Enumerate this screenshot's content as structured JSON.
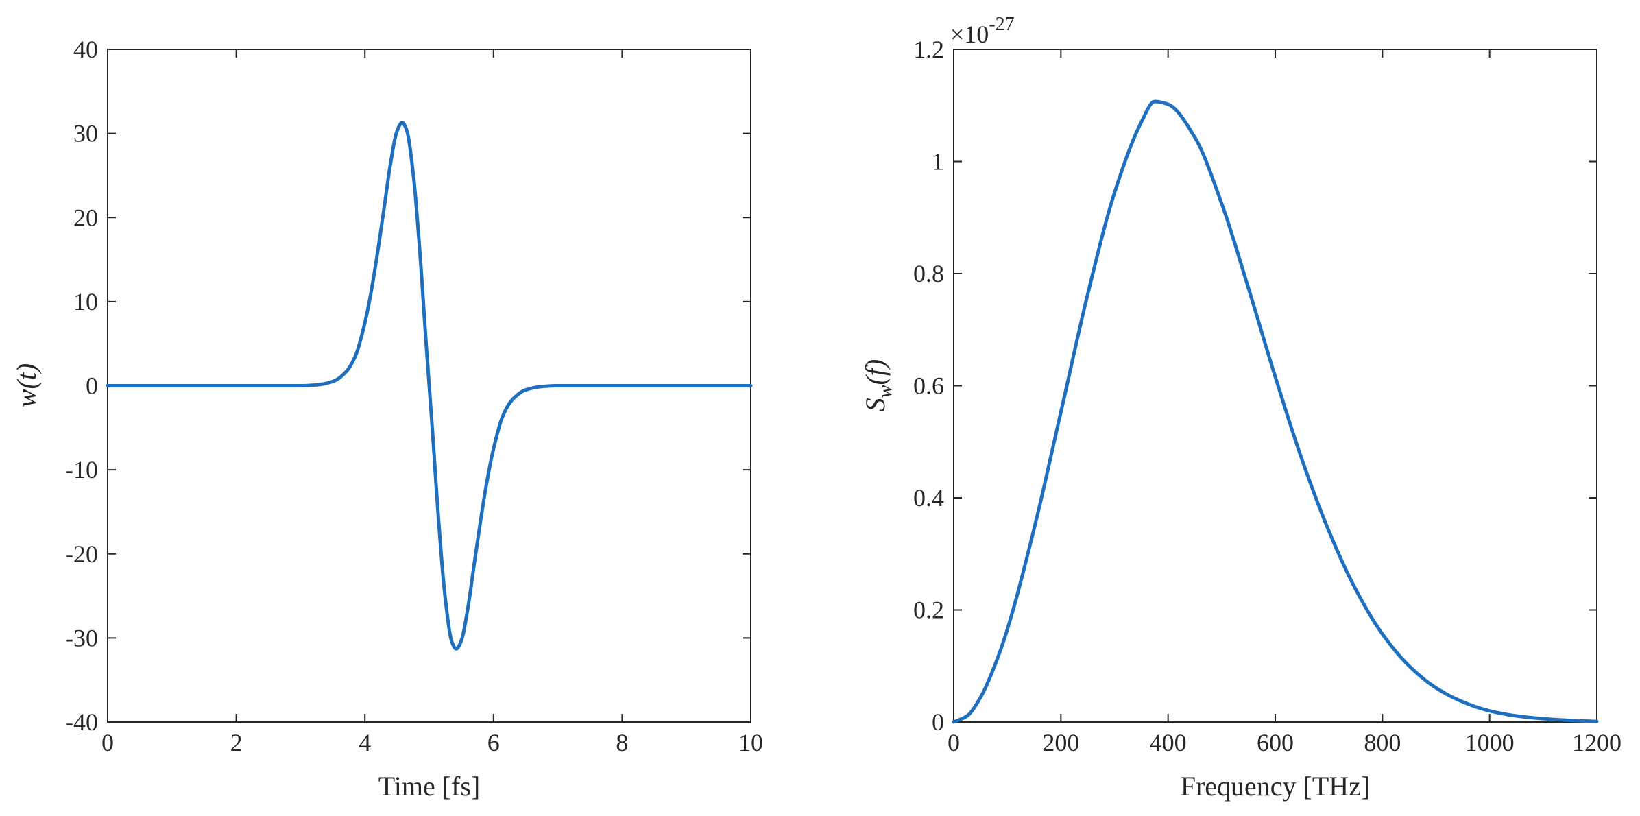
{
  "chart_data": [
    {
      "type": "line",
      "xlabel": "Time [fs]",
      "ylabel": "w(t)",
      "ylabel_parts": {
        "base": "w",
        "sub": "",
        "arg": "(t)"
      },
      "xlim": [
        0,
        10
      ],
      "ylim": [
        -40,
        40
      ],
      "xticks": [
        0,
        2,
        4,
        6,
        8,
        10
      ],
      "yticks": [
        -40,
        -30,
        -20,
        -10,
        0,
        10,
        20,
        30,
        40
      ],
      "xtick_labels": [
        "0",
        "2",
        "4",
        "6",
        "8",
        "10"
      ],
      "ytick_labels": [
        "-40",
        "-30",
        "-20",
        "-10",
        "0",
        "10",
        "20",
        "30",
        "40"
      ],
      "grid": false,
      "color": "#1f6fc0",
      "series": [
        {
          "x": [
            0,
            3.0,
            3.25,
            3.5,
            3.7,
            3.85,
            4.0,
            4.1,
            4.2,
            4.3,
            4.4,
            4.5,
            4.58,
            4.65,
            4.75,
            4.85,
            4.95,
            5.0,
            5.05,
            5.15,
            5.25,
            5.35,
            5.42,
            5.5,
            5.6,
            5.7,
            5.8,
            5.9,
            6.0,
            6.15,
            6.3,
            6.5,
            6.75,
            7.0,
            10
          ],
          "y": [
            0,
            0.0,
            0.1,
            0.5,
            1.6,
            3.5,
            7.5,
            11.3,
            16.0,
            21.2,
            26.5,
            30.3,
            31.3,
            30.4,
            25.3,
            16.4,
            5.3,
            0,
            -5.3,
            -16.4,
            -25.3,
            -30.4,
            -31.3,
            -30.3,
            -26.5,
            -21.2,
            -16.0,
            -11.3,
            -7.5,
            -3.5,
            -1.6,
            -0.5,
            -0.1,
            0.0,
            0
          ]
        }
      ]
    },
    {
      "type": "line",
      "xlabel": "Frequency [THz]",
      "ylabel": "S_w(f)",
      "ylabel_parts": {
        "base": "S",
        "sub": "w",
        "arg": "(f)"
      },
      "exponent_label": "×10",
      "exponent_power": "-27",
      "xlim": [
        0,
        1200
      ],
      "ylim": [
        0,
        1.2
      ],
      "xticks": [
        0,
        200,
        400,
        600,
        800,
        1000,
        1200
      ],
      "yticks": [
        0,
        0.2,
        0.4,
        0.6,
        0.8,
        1.0,
        1.2
      ],
      "xtick_labels": [
        "0",
        "200",
        "400",
        "600",
        "800",
        "1000",
        "1200"
      ],
      "ytick_labels": [
        "0",
        "0.2",
        "0.4",
        "0.6",
        "0.8",
        "1",
        "1.2"
      ],
      "grid": false,
      "color": "#1f6fc0",
      "series": [
        {
          "x": [
            0,
            25,
            50,
            75,
            100,
            150,
            200,
            250,
            300,
            350,
            375,
            400,
            450,
            500,
            550,
            600,
            650,
            700,
            750,
            800,
            850,
            900,
            950,
            1000,
            1050,
            1100,
            1150,
            1200
          ],
          "y": [
            0.0,
            0.011,
            0.044,
            0.097,
            0.165,
            0.345,
            0.553,
            0.763,
            0.944,
            1.07,
            1.107,
            1.102,
            1.043,
            0.925,
            0.774,
            0.616,
            0.468,
            0.341,
            0.237,
            0.157,
            0.1,
            0.061,
            0.036,
            0.02,
            0.011,
            0.006,
            0.003,
            0.001
          ]
        }
      ]
    }
  ]
}
